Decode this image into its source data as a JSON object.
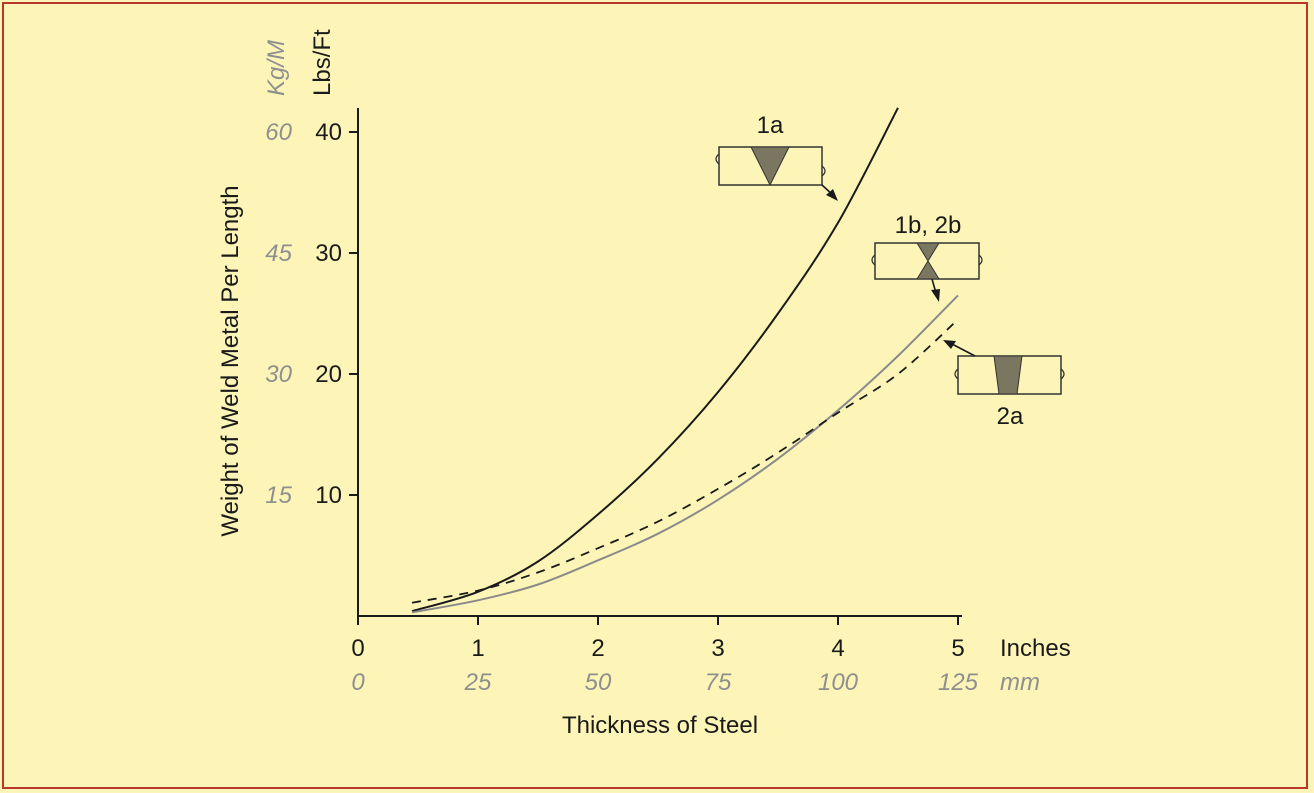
{
  "chart_data": {
    "type": "line",
    "xlabel": "Thickness of Steel",
    "ylabel": "Weight of Weld Metal Per Length",
    "x_unit_primary": "Inches",
    "x_unit_secondary": "mm",
    "y_unit_primary": "Lbs/Ft",
    "y_unit_secondary": "Kg/M",
    "xlim": [
      0,
      5
    ],
    "ylim": [
      0,
      40
    ],
    "x_ticks_primary": [
      "0",
      "1",
      "2",
      "3",
      "4",
      "5"
    ],
    "x_ticks_secondary": [
      "0",
      "25",
      "50",
      "75",
      "100",
      "125"
    ],
    "y_ticks_primary": [
      "10",
      "20",
      "30",
      "40"
    ],
    "y_ticks_secondary": [
      "15",
      "30",
      "45",
      "60"
    ],
    "grid": false,
    "series": [
      {
        "name": "1a",
        "style": "solid",
        "color": "#1a1a1a",
        "x": [
          0.45,
          1,
          1.5,
          2,
          2.5,
          3,
          3.5,
          4,
          4.5
        ],
        "y": [
          0.4,
          2,
          4.5,
          8.4,
          13,
          18.5,
          25,
          32.5,
          42
        ]
      },
      {
        "name": "1b, 2b",
        "style": "solid",
        "color": "#8a8a8a",
        "x": [
          0.45,
          1,
          1.5,
          2,
          2.5,
          3,
          3.5,
          4,
          4.5,
          5
        ],
        "y": [
          0.3,
          1.3,
          2.6,
          4.6,
          6.8,
          9.6,
          13,
          17,
          21.5,
          26.5
        ]
      },
      {
        "name": "2a",
        "style": "dashed",
        "color": "#1a1a1a",
        "x": [
          0.45,
          1,
          1.5,
          2,
          2.5,
          3,
          3.5,
          4,
          4.5,
          5
        ],
        "y": [
          1.1,
          2.1,
          3.6,
          5.6,
          7.8,
          10.5,
          13.5,
          16.8,
          20,
          24.5
        ]
      }
    ],
    "annotations": [
      {
        "label": "1a",
        "series": "1a"
      },
      {
        "label": "1b, 2b",
        "series": "1b, 2b"
      },
      {
        "label": "2a",
        "series": "2a"
      }
    ]
  },
  "colors": {
    "background": "#fdf5b8",
    "frame": "#b8372b",
    "weld_fill": "#7a7660"
  }
}
